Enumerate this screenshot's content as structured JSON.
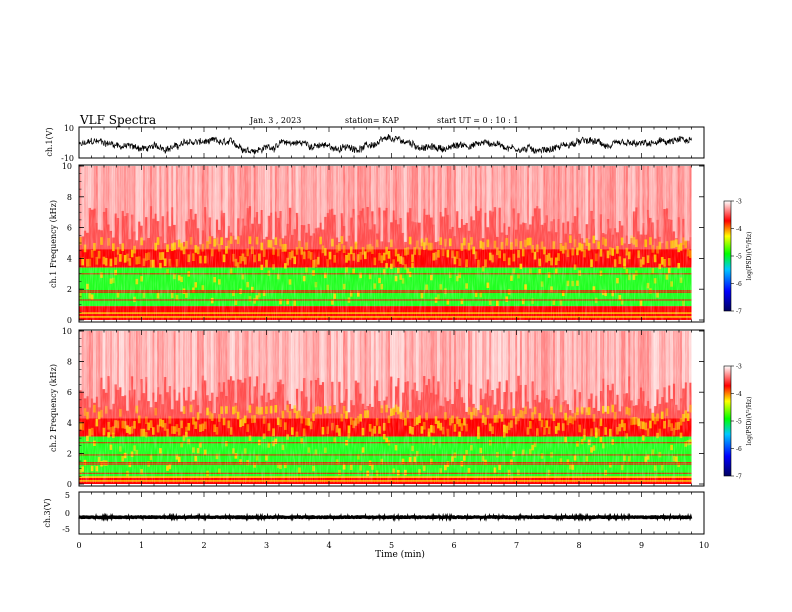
{
  "header": {
    "title": "VLF Spectra",
    "date": "Jan. 3 , 2023",
    "station": "station= KAP",
    "start_ut": "start UT = 0 : 10 : 1"
  },
  "colors": {
    "frame": "#000000",
    "colormap": [
      "#000060",
      "#0000ff",
      "#00c8ff",
      "#00ff00",
      "#ffff00",
      "#ff0000",
      "#ffffff"
    ],
    "spec_low": "#ff0000",
    "spec_band": "#20ff20",
    "spec_mid": "#ffd800"
  },
  "chart_data": [
    {
      "type": "line",
      "panel": "ch1_waveform",
      "ylabel": "ch.1(V)",
      "ylim": [
        -10,
        10
      ],
      "yticks": [
        "10",
        "-10"
      ],
      "xlim": [
        0,
        10
      ],
      "approx_mean": -2,
      "approx_range": [
        -7,
        5
      ],
      "span_min": 9.8
    },
    {
      "type": "heatmap",
      "panel": "ch1_spectrogram",
      "ylabel": "ch.1 Frequency (kHz)",
      "ylim": [
        0,
        10
      ],
      "yticks": [
        "0",
        "2",
        "4",
        "6",
        "8",
        "10"
      ],
      "xlim": [
        0,
        10
      ],
      "colorbar_label": "log(PSD)(V²/Hz)",
      "colorbar_ticks": [
        "-3",
        "-4",
        "-5",
        "-6",
        "-7"
      ],
      "colorbar_range": [
        -7,
        -3
      ]
    },
    {
      "type": "heatmap",
      "panel": "ch2_spectrogram",
      "ylabel": "ch.2 Frequency (kHz)",
      "ylim": [
        0,
        10
      ],
      "yticks": [
        "0",
        "2",
        "4",
        "6",
        "8",
        "10"
      ],
      "xlim": [
        0,
        10
      ],
      "colorbar_label": "log(PSD)(V²/Hz)",
      "colorbar_ticks": [
        "-3",
        "-4",
        "-5",
        "-6",
        "-7"
      ],
      "colorbar_range": [
        -7,
        -3
      ]
    },
    {
      "type": "line",
      "panel": "ch3_waveform",
      "ylabel": "ch.3(V)",
      "ylim": [
        -5,
        5
      ],
      "yticks": [
        "5",
        "0",
        "-5"
      ],
      "xlim": [
        0,
        10
      ],
      "approx_mean": -1,
      "span_min": 9.8
    }
  ],
  "xaxis": {
    "label": "Time (min)",
    "ticks": [
      "0",
      "1",
      "2",
      "3",
      "4",
      "5",
      "6",
      "7",
      "8",
      "9",
      "10"
    ]
  }
}
